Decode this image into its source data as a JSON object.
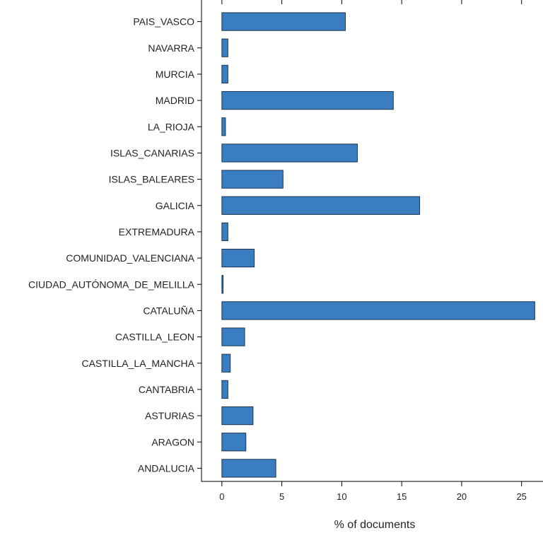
{
  "chart_data": {
    "type": "bar",
    "orientation": "horizontal",
    "categories": [
      "ANDALUCIA",
      "ARAGON",
      "ASTURIAS",
      "CANTABRIA",
      "CASTILLA_LA_MANCHA",
      "CASTILLA_LEON",
      "CATALUÑA",
      "CIUDAD_AUTÓNOMA_DE_MELILLA",
      "COMUNIDAD_VALENCIANA",
      "EXTREMADURA",
      "GALICIA",
      "ISLAS_BALEARES",
      "ISLAS_CANARIAS",
      "LA_RIOJA",
      "MADRID",
      "MURCIA",
      "NAVARRA",
      "PAIS_VASCO"
    ],
    "values": [
      4.5,
      2.0,
      2.6,
      0.5,
      0.7,
      1.9,
      26.1,
      0.1,
      2.7,
      0.5,
      16.5,
      5.1,
      11.3,
      0.3,
      14.3,
      0.5,
      0.5,
      10.3
    ],
    "xlabel": "% of documents",
    "ylabel": "",
    "xlim": [
      -1.7,
      27.2
    ],
    "xticks": [
      0,
      5,
      10,
      15,
      20,
      25
    ],
    "grid": false,
    "colors": {
      "bar_fill": "#3a7dc0",
      "bar_stroke": "#1a3550",
      "axis": "#000000"
    }
  }
}
